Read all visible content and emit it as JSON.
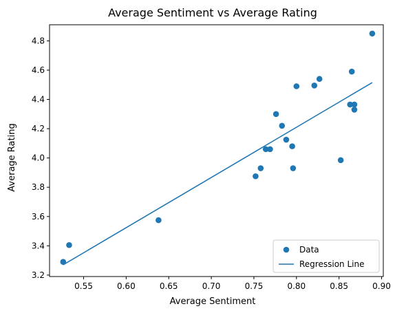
{
  "chart_data": {
    "type": "scatter",
    "title": "Average Sentiment vs Average Rating",
    "xlabel": "Average Sentiment",
    "ylabel": "Average Rating",
    "xlim": [
      0.51,
      0.902
    ],
    "ylim": [
      3.19,
      4.91
    ],
    "x_ticks": [
      0.55,
      0.6,
      0.65,
      0.7,
      0.75,
      0.8,
      0.85,
      0.9
    ],
    "x_tick_labels": [
      "0.55",
      "0.60",
      "0.65",
      "0.70",
      "0.75",
      "0.80",
      "0.85",
      "0.90"
    ],
    "y_ticks": [
      3.2,
      3.4,
      3.6,
      3.8,
      4.0,
      4.2,
      4.4,
      4.6,
      4.8
    ],
    "y_tick_labels": [
      "3.2",
      "3.4",
      "3.6",
      "3.8",
      "4.0",
      "4.2",
      "4.4",
      "4.6",
      "4.8"
    ],
    "grid": false,
    "legend_position": "bottom-right",
    "series": [
      {
        "name": "Data",
        "kind": "scatter",
        "color": "#1f77b4",
        "points": [
          {
            "x": 0.526,
            "y": 3.29
          },
          {
            "x": 0.533,
            "y": 3.405
          },
          {
            "x": 0.638,
            "y": 3.575
          },
          {
            "x": 0.752,
            "y": 3.875
          },
          {
            "x": 0.758,
            "y": 3.93
          },
          {
            "x": 0.764,
            "y": 4.06
          },
          {
            "x": 0.769,
            "y": 4.06
          },
          {
            "x": 0.776,
            "y": 4.3
          },
          {
            "x": 0.783,
            "y": 4.22
          },
          {
            "x": 0.788,
            "y": 4.125
          },
          {
            "x": 0.795,
            "y": 4.08
          },
          {
            "x": 0.796,
            "y": 3.93
          },
          {
            "x": 0.8,
            "y": 4.49
          },
          {
            "x": 0.821,
            "y": 4.495
          },
          {
            "x": 0.827,
            "y": 4.54
          },
          {
            "x": 0.852,
            "y": 3.985
          },
          {
            "x": 0.863,
            "y": 4.365
          },
          {
            "x": 0.865,
            "y": 4.59
          },
          {
            "x": 0.868,
            "y": 4.365
          },
          {
            "x": 0.868,
            "y": 4.33
          },
          {
            "x": 0.889,
            "y": 4.85
          }
        ]
      },
      {
        "name": "Regression Line",
        "kind": "line",
        "color": "#1f77b4",
        "points": [
          {
            "x": 0.526,
            "y": 3.27
          },
          {
            "x": 0.889,
            "y": 4.515
          }
        ]
      }
    ]
  }
}
